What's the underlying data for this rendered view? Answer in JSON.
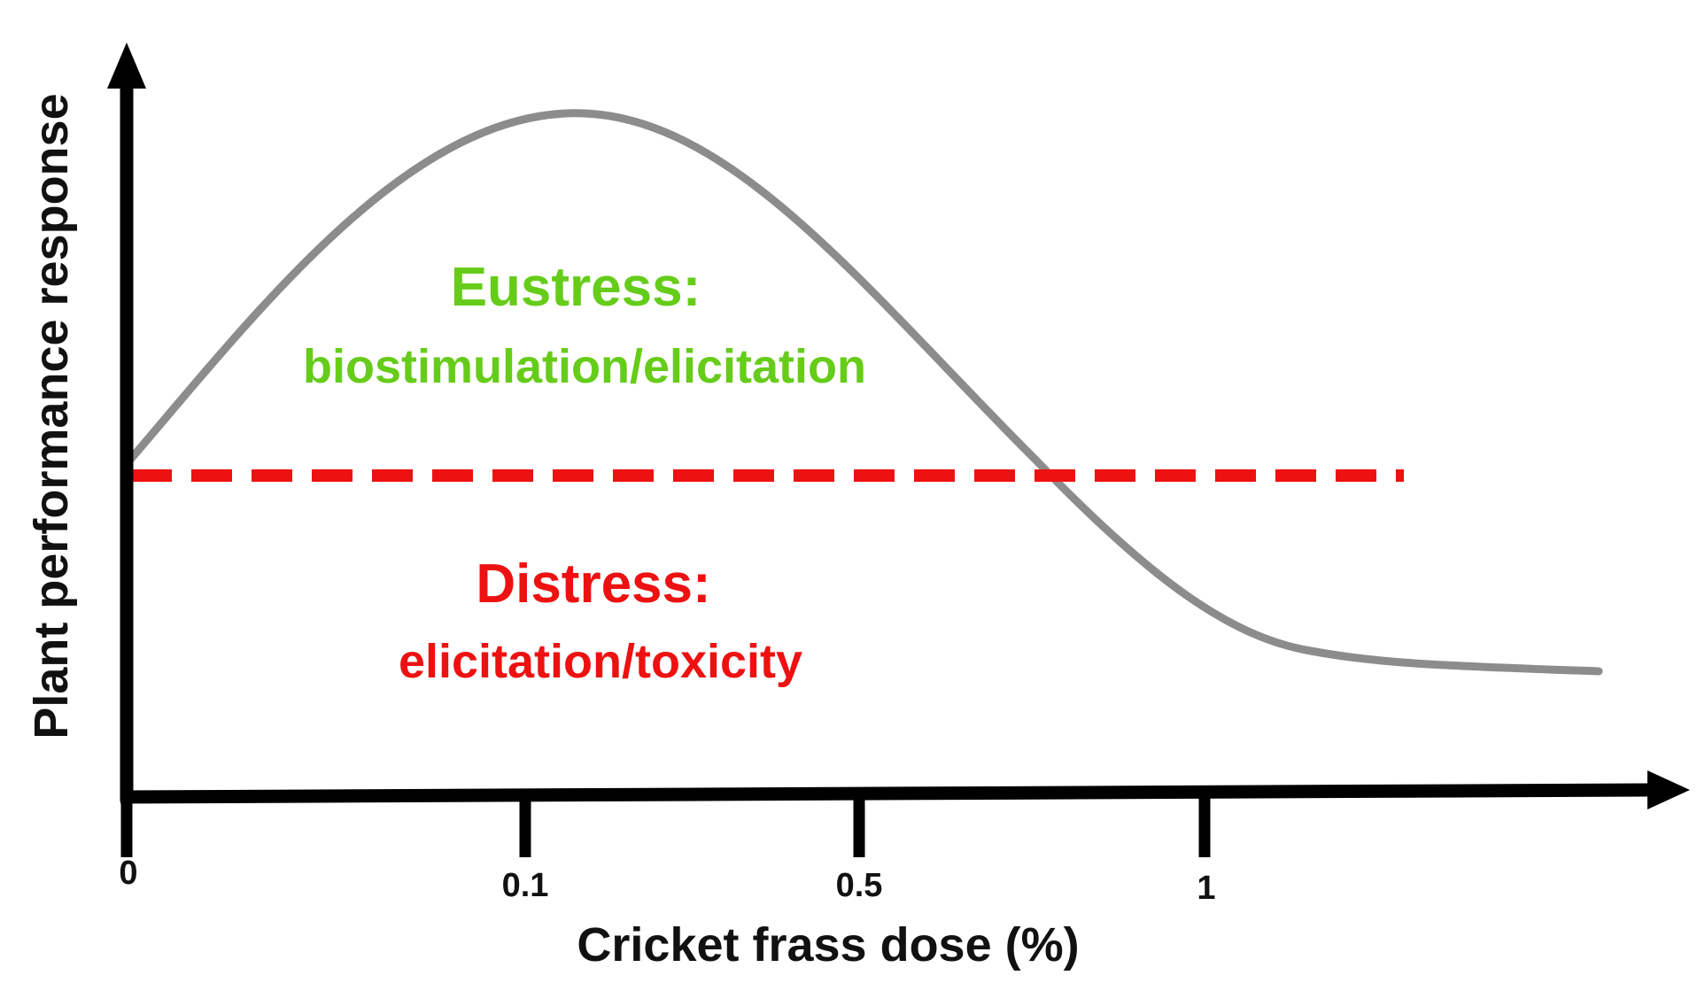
{
  "chart_data": {
    "type": "line",
    "title": "",
    "xlabel": "Cricket frass dose (%)",
    "ylabel": "Plant performance response",
    "x_ticks": [
      "0",
      "0.1",
      "0.5",
      "1"
    ],
    "curve": {
      "name": "",
      "color": "#8c8c8c",
      "shape": "hormetic dose-response curve: rises from the control level to a peak between 0.1 and 0.5, falls below the control level after 0.5, then levels off past 1"
    },
    "threshold": {
      "color": "#ee1111",
      "style": "dashed"
    },
    "annotations": {
      "above": {
        "title": "Eustress:",
        "subtitle": "biostimulation/elicitation",
        "color": "#66cc1a"
      },
      "below": {
        "title": "Distress:",
        "subtitle": "elicitation/toxicity",
        "color": "#ee1111"
      }
    },
    "grid": false,
    "legend": "none"
  }
}
